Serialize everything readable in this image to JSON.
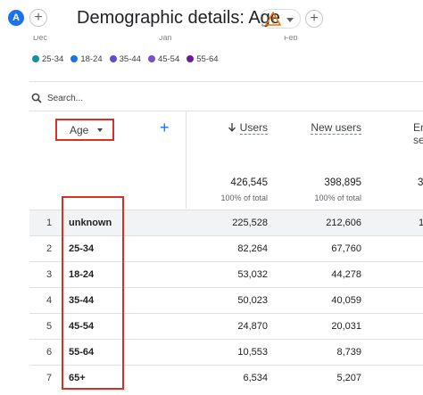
{
  "header": {
    "avatar_letter": "A",
    "title": "Demographic details: Age",
    "add_comparison": "+",
    "add_more": "+"
  },
  "chart_axis_stubs": [
    "Dec",
    "Jan",
    "Feb"
  ],
  "legend": [
    {
      "label": "25-34",
      "color": "#12939a"
    },
    {
      "label": "18-24",
      "color": "#1a73e8"
    },
    {
      "label": "35-44",
      "color": "#5e4fd0"
    },
    {
      "label": "45-54",
      "color": "#7b4fc9"
    },
    {
      "label": "55-64",
      "color": "#6a1b9a"
    }
  ],
  "search": {
    "placeholder": "Search..."
  },
  "table": {
    "dimension_header": "Age",
    "add_dimension": "+",
    "columns": {
      "users": "Users",
      "new_users": "New users",
      "extra_top": "Er",
      "extra_bottom": "se"
    },
    "totals": {
      "users": "426,545",
      "users_pct": "100% of total",
      "new_users": "398,895",
      "new_users_pct": "100% of total",
      "extra": "3"
    },
    "rows": [
      {
        "idx": "1",
        "age": "unknown",
        "users": "225,528",
        "new_users": "212,606",
        "extra": "1"
      },
      {
        "idx": "2",
        "age": "25-34",
        "users": "82,264",
        "new_users": "67,760",
        "extra": ""
      },
      {
        "idx": "3",
        "age": "18-24",
        "users": "53,032",
        "new_users": "44,278",
        "extra": ""
      },
      {
        "idx": "4",
        "age": "35-44",
        "users": "50,023",
        "new_users": "40,059",
        "extra": ""
      },
      {
        "idx": "5",
        "age": "45-54",
        "users": "24,870",
        "new_users": "20,031",
        "extra": ""
      },
      {
        "idx": "6",
        "age": "55-64",
        "users": "10,553",
        "new_users": "8,739",
        "extra": ""
      },
      {
        "idx": "7",
        "age": "65+",
        "users": "6,534",
        "new_users": "5,207",
        "extra": ""
      }
    ]
  }
}
